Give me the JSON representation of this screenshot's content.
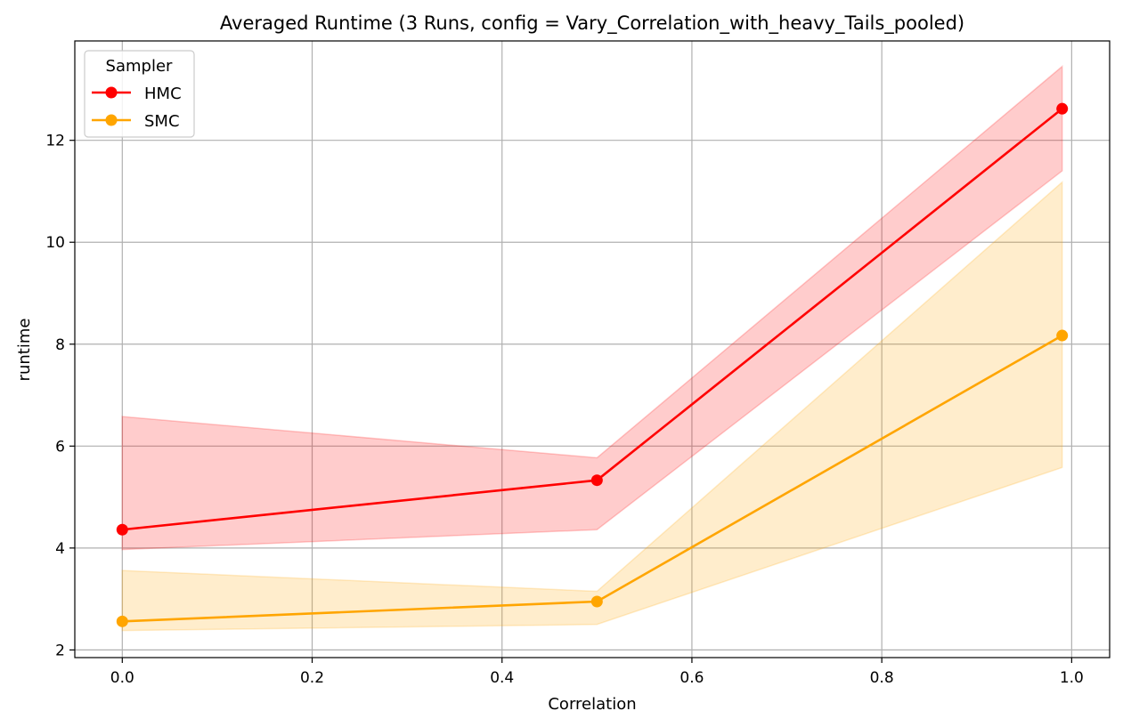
{
  "chart_data": {
    "type": "line",
    "title": "Averaged Runtime (3 Runs, config = Vary_Correlation_with_heavy_Tails_pooled)",
    "xlabel": "Correlation",
    "ylabel": "runtime",
    "xlim": [
      -0.05,
      1.04
    ],
    "ylim": [
      1.85,
      13.95
    ],
    "xticks": [
      0.0,
      0.2,
      0.4,
      0.6,
      0.8,
      1.0
    ],
    "xtick_labels": [
      "0.0",
      "0.2",
      "0.4",
      "0.6",
      "0.8",
      "1.0"
    ],
    "yticks": [
      2,
      4,
      6,
      8,
      10,
      12
    ],
    "ytick_labels": [
      "2",
      "4",
      "6",
      "8",
      "10",
      "12"
    ],
    "grid": true,
    "legend": {
      "title": "Sampler",
      "position": "top-left"
    },
    "series": [
      {
        "name": "HMC",
        "color": "#ff0000",
        "marker": "circle",
        "x": [
          0.0,
          0.5,
          0.99
        ],
        "y": [
          4.36,
          5.33,
          12.62
        ],
        "band_low": [
          3.97,
          4.36,
          11.4
        ],
        "band_high": [
          6.58,
          5.77,
          13.45
        ]
      },
      {
        "name": "SMC",
        "color": "#ffa500",
        "marker": "circle",
        "x": [
          0.0,
          0.5,
          0.99
        ],
        "y": [
          2.56,
          2.95,
          8.17
        ],
        "band_low": [
          2.38,
          2.5,
          5.58
        ],
        "band_high": [
          3.56,
          3.15,
          11.18
        ]
      }
    ]
  }
}
